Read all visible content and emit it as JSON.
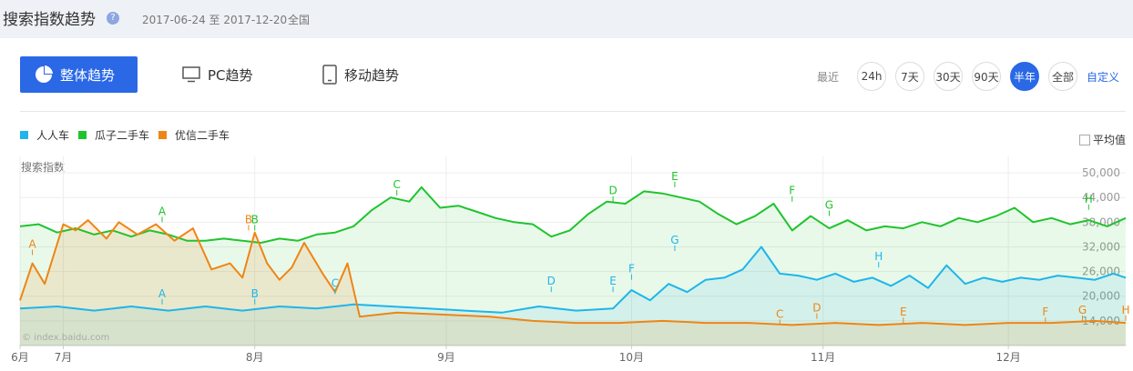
{
  "header": {
    "title": "搜索指数趋势",
    "help_icon": "question-circle-icon",
    "date_range": "2017-06-24 至 2017-12-20",
    "region": "全国"
  },
  "tabs": [
    {
      "label": "整体趋势",
      "icon": "pie-chart-icon",
      "active": true
    },
    {
      "label": "PC趋势",
      "icon": "monitor-icon",
      "active": false
    },
    {
      "label": "移动趋势",
      "icon": "tablet-icon",
      "active": false
    }
  ],
  "time_range": {
    "label": "最近",
    "options": [
      "24h",
      "7天",
      "30天",
      "90天",
      "半年",
      "全部"
    ],
    "selected": "半年",
    "custom": "自定义"
  },
  "legend": [
    {
      "name": "人人车",
      "color": "#1fb5ea"
    },
    {
      "name": "瓜子二手车",
      "color": "#1fc42d"
    },
    {
      "name": "优信二手车",
      "color": "#ef8515"
    }
  ],
  "average_toggle": {
    "label": "平均值",
    "checked": false
  },
  "watermark": "© index.baidu.com",
  "chart_data": {
    "type": "area",
    "ylabel": "搜索指数",
    "y_ticks": [
      "50,000",
      "44,000",
      "38,000",
      "32,000",
      "26,000",
      "20,000",
      "14,000"
    ],
    "ylim": [
      8000,
      54000
    ],
    "x_range": [
      "2017-06-24",
      "2017-12-20"
    ],
    "x_ticks": [
      {
        "date": "2017-06-24",
        "label": "6月"
      },
      {
        "date": "2017-07-01",
        "label": "7月"
      },
      {
        "date": "2017-08-01",
        "label": "8月"
      },
      {
        "date": "2017-09-01",
        "label": "9月"
      },
      {
        "date": "2017-10-01",
        "label": "10月"
      },
      {
        "date": "2017-11-01",
        "label": "11月"
      },
      {
        "date": "2017-12-01",
        "label": "12月"
      }
    ],
    "grid": true,
    "legend_position": "top-left",
    "series": [
      {
        "name": "瓜子二手车",
        "color": "#1fc42d",
        "points": [
          [
            "2017-06-24",
            37000
          ],
          [
            "2017-06-27",
            37500
          ],
          [
            "2017-06-30",
            35500
          ],
          [
            "2017-07-03",
            36500
          ],
          [
            "2017-07-06",
            35000
          ],
          [
            "2017-07-09",
            36000
          ],
          [
            "2017-07-12",
            34500
          ],
          [
            "2017-07-15",
            36000
          ],
          [
            "2017-07-18",
            35000
          ],
          [
            "2017-07-21",
            33500
          ],
          [
            "2017-07-24",
            33500
          ],
          [
            "2017-07-27",
            34000
          ],
          [
            "2017-07-30",
            33500
          ],
          [
            "2017-08-02",
            33000
          ],
          [
            "2017-08-05",
            34000
          ],
          [
            "2017-08-08",
            33500
          ],
          [
            "2017-08-11",
            35000
          ],
          [
            "2017-08-14",
            35500
          ],
          [
            "2017-08-17",
            37000
          ],
          [
            "2017-08-20",
            41000
          ],
          [
            "2017-08-23",
            44000
          ],
          [
            "2017-08-26",
            43000
          ],
          [
            "2017-08-28",
            46500
          ],
          [
            "2017-08-31",
            41500
          ],
          [
            "2017-09-03",
            42000
          ],
          [
            "2017-09-06",
            40500
          ],
          [
            "2017-09-09",
            39000
          ],
          [
            "2017-09-12",
            38000
          ],
          [
            "2017-09-15",
            37500
          ],
          [
            "2017-09-18",
            34500
          ],
          [
            "2017-09-21",
            36000
          ],
          [
            "2017-09-24",
            40000
          ],
          [
            "2017-09-27",
            43000
          ],
          [
            "2017-09-30",
            42500
          ],
          [
            "2017-10-03",
            45500
          ],
          [
            "2017-10-06",
            45000
          ],
          [
            "2017-10-09",
            44000
          ],
          [
            "2017-10-12",
            43000
          ],
          [
            "2017-10-15",
            40000
          ],
          [
            "2017-10-18",
            37500
          ],
          [
            "2017-10-21",
            39500
          ],
          [
            "2017-10-24",
            42500
          ],
          [
            "2017-10-27",
            36000
          ],
          [
            "2017-10-30",
            39500
          ],
          [
            "2017-11-02",
            36500
          ],
          [
            "2017-11-05",
            38500
          ],
          [
            "2017-11-08",
            36000
          ],
          [
            "2017-11-11",
            37000
          ],
          [
            "2017-11-14",
            36500
          ],
          [
            "2017-11-17",
            38000
          ],
          [
            "2017-11-20",
            37000
          ],
          [
            "2017-11-23",
            39000
          ],
          [
            "2017-11-26",
            38000
          ],
          [
            "2017-11-29",
            39500
          ],
          [
            "2017-12-02",
            41500
          ],
          [
            "2017-12-05",
            38000
          ],
          [
            "2017-12-08",
            39000
          ],
          [
            "2017-12-11",
            37500
          ],
          [
            "2017-12-14",
            38500
          ],
          [
            "2017-12-17",
            37000
          ],
          [
            "2017-12-20",
            39000
          ]
        ]
      },
      {
        "name": "人人车",
        "color": "#1fb5ea",
        "points": [
          [
            "2017-06-24",
            17000
          ],
          [
            "2017-06-30",
            17500
          ],
          [
            "2017-07-06",
            16500
          ],
          [
            "2017-07-12",
            17500
          ],
          [
            "2017-07-18",
            16500
          ],
          [
            "2017-07-24",
            17500
          ],
          [
            "2017-07-30",
            16500
          ],
          [
            "2017-08-05",
            17500
          ],
          [
            "2017-08-11",
            17000
          ],
          [
            "2017-08-17",
            18000
          ],
          [
            "2017-08-23",
            17500
          ],
          [
            "2017-08-29",
            17000
          ],
          [
            "2017-09-04",
            16500
          ],
          [
            "2017-09-10",
            16000
          ],
          [
            "2017-09-16",
            17500
          ],
          [
            "2017-09-22",
            16500
          ],
          [
            "2017-09-28",
            17000
          ],
          [
            "2017-10-01",
            21500
          ],
          [
            "2017-10-04",
            19000
          ],
          [
            "2017-10-07",
            23000
          ],
          [
            "2017-10-10",
            21000
          ],
          [
            "2017-10-13",
            24000
          ],
          [
            "2017-10-16",
            24500
          ],
          [
            "2017-10-19",
            26500
          ],
          [
            "2017-10-22",
            32000
          ],
          [
            "2017-10-25",
            25500
          ],
          [
            "2017-10-28",
            25000
          ],
          [
            "2017-10-31",
            24000
          ],
          [
            "2017-11-03",
            25500
          ],
          [
            "2017-11-06",
            23500
          ],
          [
            "2017-11-09",
            24500
          ],
          [
            "2017-11-12",
            22500
          ],
          [
            "2017-11-15",
            25000
          ],
          [
            "2017-11-18",
            22000
          ],
          [
            "2017-11-21",
            27500
          ],
          [
            "2017-11-24",
            23000
          ],
          [
            "2017-11-27",
            24500
          ],
          [
            "2017-11-30",
            23500
          ],
          [
            "2017-12-03",
            24500
          ],
          [
            "2017-12-06",
            24000
          ],
          [
            "2017-12-09",
            25000
          ],
          [
            "2017-12-12",
            24500
          ],
          [
            "2017-12-15",
            24000
          ],
          [
            "2017-12-18",
            25500
          ],
          [
            "2017-12-20",
            24500
          ]
        ]
      },
      {
        "name": "优信二手车",
        "color": "#ef8515",
        "points": [
          [
            "2017-06-24",
            19000
          ],
          [
            "2017-06-26",
            28000
          ],
          [
            "2017-06-28",
            23000
          ],
          [
            "2017-07-01",
            37500
          ],
          [
            "2017-07-03",
            36000
          ],
          [
            "2017-07-05",
            38500
          ],
          [
            "2017-07-08",
            34000
          ],
          [
            "2017-07-10",
            38000
          ],
          [
            "2017-07-13",
            35000
          ],
          [
            "2017-07-16",
            37500
          ],
          [
            "2017-07-19",
            33500
          ],
          [
            "2017-07-22",
            36500
          ],
          [
            "2017-07-25",
            26500
          ],
          [
            "2017-07-28",
            28000
          ],
          [
            "2017-07-30",
            24500
          ],
          [
            "2017-08-01",
            35500
          ],
          [
            "2017-08-03",
            28000
          ],
          [
            "2017-08-05",
            24000
          ],
          [
            "2017-08-07",
            27000
          ],
          [
            "2017-08-09",
            33000
          ],
          [
            "2017-08-12",
            25500
          ],
          [
            "2017-08-14",
            21000
          ],
          [
            "2017-08-16",
            28000
          ],
          [
            "2017-08-18",
            15000
          ],
          [
            "2017-08-24",
            16000
          ],
          [
            "2017-09-01",
            15500
          ],
          [
            "2017-09-08",
            15000
          ],
          [
            "2017-09-15",
            14000
          ],
          [
            "2017-09-22",
            13500
          ],
          [
            "2017-09-29",
            13500
          ],
          [
            "2017-10-06",
            14000
          ],
          [
            "2017-10-13",
            13500
          ],
          [
            "2017-10-20",
            13500
          ],
          [
            "2017-10-27",
            13000
          ],
          [
            "2017-11-03",
            13500
          ],
          [
            "2017-11-10",
            13000
          ],
          [
            "2017-11-17",
            13500
          ],
          [
            "2017-11-24",
            13000
          ],
          [
            "2017-12-01",
            13500
          ],
          [
            "2017-12-08",
            13500
          ],
          [
            "2017-12-15",
            14000
          ],
          [
            "2017-12-20",
            13500
          ]
        ]
      }
    ],
    "annotations": [
      {
        "series": "优信二手车",
        "label": "A",
        "date": "2017-06-26",
        "value": 30000
      },
      {
        "series": "瓜子二手车",
        "label": "A",
        "date": "2017-07-17",
        "value": 38000
      },
      {
        "series": "人人车",
        "label": "A",
        "date": "2017-07-17",
        "value": 18000
      },
      {
        "series": "优信二手车",
        "label": "B",
        "date": "2017-07-31",
        "value": 36000
      },
      {
        "series": "瓜子二手车",
        "label": "B",
        "date": "2017-08-01",
        "value": 36000
      },
      {
        "series": "人人车",
        "label": "B",
        "date": "2017-08-01",
        "value": 18000
      },
      {
        "series": "人人车",
        "label": "C",
        "date": "2017-08-14",
        "value": 20500
      },
      {
        "series": "瓜子二手车",
        "label": "C",
        "date": "2017-08-24",
        "value": 44500
      },
      {
        "series": "人人车",
        "label": "D",
        "date": "2017-09-18",
        "value": 21000
      },
      {
        "series": "瓜子二手车",
        "label": "D",
        "date": "2017-09-28",
        "value": 43000
      },
      {
        "series": "人人车",
        "label": "E",
        "date": "2017-09-28",
        "value": 21000
      },
      {
        "series": "人人车",
        "label": "F",
        "date": "2017-10-01",
        "value": 24000
      },
      {
        "series": "瓜子二手车",
        "label": "E",
        "date": "2017-10-08",
        "value": 46500
      },
      {
        "series": "人人车",
        "label": "G",
        "date": "2017-10-08",
        "value": 31000
      },
      {
        "series": "瓜子二手车",
        "label": "F",
        "date": "2017-10-27",
        "value": 43000
      },
      {
        "series": "优信二手车",
        "label": "C",
        "date": "2017-10-25",
        "value": 13000
      },
      {
        "series": "优信二手车",
        "label": "D",
        "date": "2017-10-31",
        "value": 14500
      },
      {
        "series": "瓜子二手车",
        "label": "G",
        "date": "2017-11-02",
        "value": 39500
      },
      {
        "series": "人人车",
        "label": "H",
        "date": "2017-11-10",
        "value": 27000
      },
      {
        "series": "优信二手车",
        "label": "E",
        "date": "2017-11-14",
        "value": 13500
      },
      {
        "series": "优信二手车",
        "label": "F",
        "date": "2017-12-07",
        "value": 13500
      },
      {
        "series": "优信二手车",
        "label": "G",
        "date": "2017-12-13",
        "value": 14000
      },
      {
        "series": "瓜子二手车",
        "label": "H",
        "date": "2017-12-14",
        "value": 41000
      },
      {
        "series": "优信二手车",
        "label": "H",
        "date": "2017-12-20",
        "value": 14000
      }
    ]
  }
}
